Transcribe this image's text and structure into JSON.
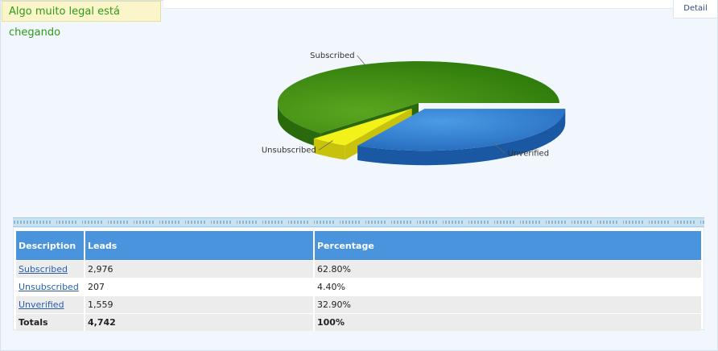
{
  "header": {
    "title": "Algo muito legal está chegando",
    "detail_label": "Detail"
  },
  "chart_data": {
    "type": "pie",
    "categories": [
      "Subscribed",
      "Unsubscribed",
      "Unverified"
    ],
    "values": [
      62.8,
      4.4,
      32.9
    ],
    "colors": [
      "#3d8a12",
      "#f2f21a",
      "#2f7bd0"
    ],
    "labels": [
      "Subscribed",
      "Unsubscribed",
      "Unverified"
    ]
  },
  "table": {
    "headers": [
      "Description",
      "Leads",
      "Percentage"
    ],
    "rows": [
      {
        "description": "Subscribed",
        "leads": "2,976",
        "percentage": "62.80%"
      },
      {
        "description": "Unsubscribed",
        "leads": "207",
        "percentage": "4.40%"
      },
      {
        "description": "Unverified",
        "leads": "1,559",
        "percentage": "32.90%"
      }
    ],
    "totals": {
      "description": "Totals",
      "leads": "4,742",
      "percentage": "100%"
    }
  }
}
